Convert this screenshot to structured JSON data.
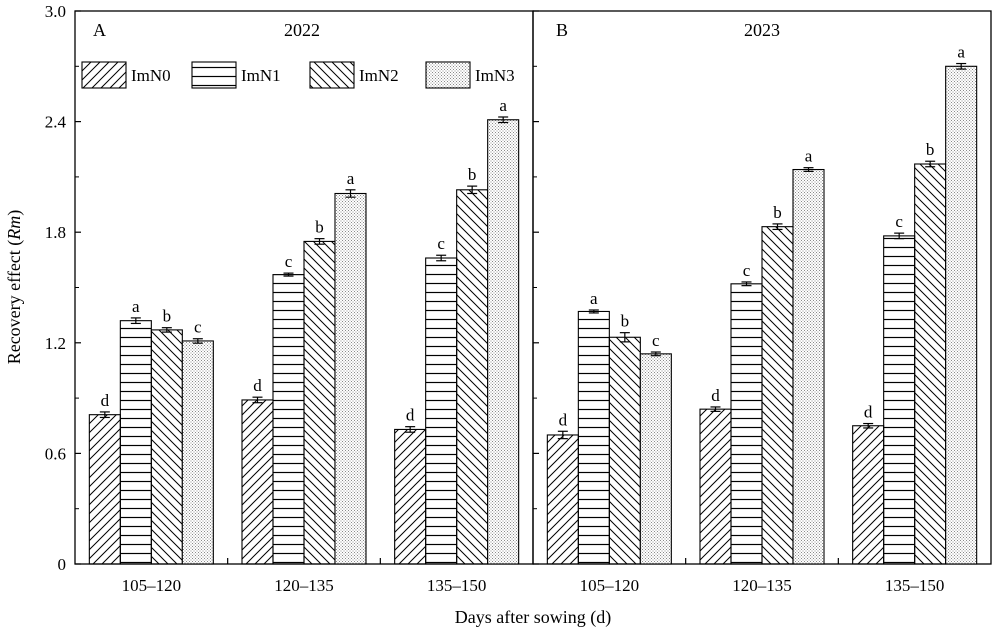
{
  "chart_data": {
    "type": "bar",
    "ylabel": "Recovery effect (Rm)",
    "ylabel_main": "Recovery effect (",
    "ylabel_italic": "Rm",
    "ylabel_close": ")",
    "xlabel": "Days after sowing (d)",
    "ylim": [
      0,
      3.0
    ],
    "yticks": [
      "0",
      "0.6",
      "1.2",
      "1.8",
      "2.4",
      "3.0"
    ],
    "categories": [
      "105–120",
      "120–135",
      "135–150"
    ],
    "legend": {
      "placement": "top-left of panel A",
      "entries": [
        "ImN0",
        "ImN1",
        "ImN2",
        "ImN3"
      ]
    },
    "panels": [
      {
        "label": "A",
        "title": "2022",
        "series": [
          {
            "name": "ImN0",
            "values": [
              0.81,
              0.89,
              0.73
            ],
            "errors": [
              0.015,
              0.015,
              0.015
            ],
            "letters": [
              "d",
              "d",
              "d"
            ]
          },
          {
            "name": "ImN1",
            "values": [
              1.32,
              1.57,
              1.66
            ],
            "errors": [
              0.015,
              0.008,
              0.015
            ],
            "letters": [
              "a",
              "c",
              "c"
            ]
          },
          {
            "name": "ImN2",
            "values": [
              1.27,
              1.75,
              2.03
            ],
            "errors": [
              0.012,
              0.015,
              0.02
            ],
            "letters": [
              "b",
              "b",
              "b"
            ]
          },
          {
            "name": "ImN3",
            "values": [
              1.21,
              2.01,
              2.41
            ],
            "errors": [
              0.012,
              0.02,
              0.015
            ],
            "letters": [
              "c",
              "a",
              "a"
            ]
          }
        ]
      },
      {
        "label": "B",
        "title": "2023",
        "series": [
          {
            "name": "ImN0",
            "values": [
              0.7,
              0.84,
              0.75
            ],
            "errors": [
              0.02,
              0.012,
              0.012
            ],
            "letters": [
              "d",
              "d",
              "d"
            ]
          },
          {
            "name": "ImN1",
            "values": [
              1.37,
              1.52,
              1.78
            ],
            "errors": [
              0.008,
              0.01,
              0.015
            ],
            "letters": [
              "a",
              "c",
              "c"
            ]
          },
          {
            "name": "ImN2",
            "values": [
              1.23,
              1.83,
              2.17
            ],
            "errors": [
              0.025,
              0.015,
              0.015
            ],
            "letters": [
              "b",
              "b",
              "b"
            ]
          },
          {
            "name": "ImN3",
            "values": [
              1.14,
              2.14,
              2.7
            ],
            "errors": [
              0.01,
              0.01,
              0.015
            ],
            "letters": [
              "c",
              "a",
              "a"
            ]
          }
        ]
      }
    ]
  }
}
